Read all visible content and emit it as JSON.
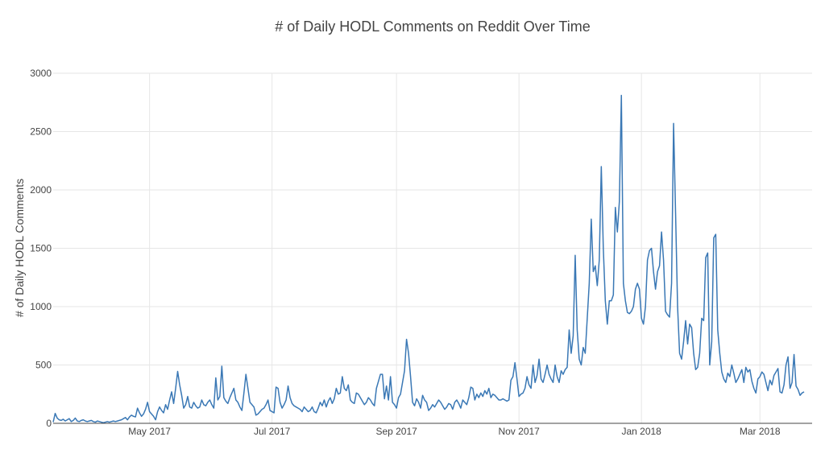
{
  "chart_data": {
    "type": "line",
    "title": "# of Daily HODL Comments on Reddit Over Time",
    "xlabel": "",
    "ylabel": "# of Daily HODL Comments",
    "x_start": "2017-03-14",
    "x_range": [
      "2017-03-14",
      "2018-03-27"
    ],
    "ylim": [
      0,
      3000
    ],
    "yticks": [
      0,
      500,
      1000,
      1500,
      2000,
      2500,
      3000
    ],
    "xticks": [
      {
        "date": "2017-05-01",
        "label": "May 2017"
      },
      {
        "date": "2017-07-01",
        "label": "Jul 2017"
      },
      {
        "date": "2017-09-01",
        "label": "Sep 2017"
      },
      {
        "date": "2017-11-01",
        "label": "Nov 2017"
      },
      {
        "date": "2018-01-01",
        "label": "Jan 2018"
      },
      {
        "date": "2018-03-01",
        "label": "Mar 2018"
      }
    ],
    "grid": true,
    "series_color": "#3a78b5",
    "series": [
      {
        "name": "",
        "values": [
          10,
          85,
          45,
          30,
          25,
          35,
          20,
          30,
          40,
          15,
          25,
          45,
          20,
          15,
          25,
          30,
          20,
          15,
          20,
          25,
          15,
          10,
          20,
          15,
          10,
          5,
          10,
          15,
          10,
          15,
          20,
          15,
          20,
          25,
          30,
          40,
          50,
          30,
          55,
          70,
          60,
          55,
          130,
          90,
          60,
          80,
          120,
          180,
          100,
          80,
          60,
          30,
          100,
          140,
          110,
          90,
          160,
          120,
          200,
          270,
          170,
          300,
          445,
          330,
          240,
          130,
          160,
          230,
          140,
          130,
          180,
          150,
          130,
          140,
          200,
          160,
          150,
          180,
          200,
          160,
          130,
          390,
          200,
          230,
          490,
          220,
          190,
          170,
          220,
          260,
          300,
          200,
          180,
          140,
          110,
          260,
          420,
          300,
          180,
          160,
          140,
          70,
          80,
          100,
          120,
          130,
          160,
          200,
          110,
          100,
          90,
          310,
          300,
          180,
          130,
          160,
          200,
          320,
          220,
          170,
          150,
          140,
          130,
          120,
          100,
          140,
          120,
          100,
          110,
          140,
          100,
          90,
          130,
          180,
          150,
          200,
          140,
          190,
          220,
          170,
          210,
          300,
          250,
          260,
          400,
          300,
          280,
          330,
          200,
          180,
          170,
          260,
          250,
          220,
          190,
          160,
          180,
          220,
          200,
          170,
          150,
          300,
          360,
          420,
          420,
          210,
          320,
          200,
          400,
          180,
          160,
          130,
          220,
          250,
          350,
          450,
          720,
          600,
          400,
          180,
          150,
          210,
          180,
          130,
          240,
          200,
          180,
          110,
          130,
          160,
          140,
          170,
          200,
          180,
          150,
          120,
          140,
          170,
          160,
          120,
          180,
          200,
          170,
          130,
          200,
          180,
          160,
          220,
          310,
          300,
          200,
          250,
          220,
          260,
          230,
          280,
          250,
          300,
          220,
          250,
          240,
          220,
          200,
          200,
          210,
          200,
          190,
          200,
          370,
          400,
          520,
          380,
          230,
          250,
          260,
          300,
          400,
          330,
          300,
          500,
          350,
          410,
          550,
          380,
          350,
          420,
          500,
          420,
          380,
          350,
          500,
          400,
          350,
          450,
          420,
          460,
          480,
          800,
          600,
          750,
          1440,
          800,
          550,
          500,
          650,
          600,
          900,
          1200,
          1750,
          1300,
          1350,
          1180,
          1400,
          2200,
          1500,
          1050,
          850,
          1050,
          1050,
          1100,
          1850,
          1640,
          1900,
          2810,
          1200,
          1050,
          950,
          940,
          960,
          1000,
          1150,
          1200,
          1150,
          900,
          850,
          1000,
          1400,
          1480,
          1500,
          1300,
          1150,
          1300,
          1350,
          1640,
          1400,
          960,
          930,
          910,
          1200,
          2570,
          1800,
          1000,
          600,
          550,
          700,
          880,
          680,
          850,
          820,
          600,
          460,
          480,
          600,
          900,
          880,
          1420,
          1460,
          500,
          700,
          1590,
          1620,
          800,
          600,
          440,
          380,
          350,
          430,
          400,
          500,
          430,
          350,
          380,
          420,
          460,
          350,
          480,
          440,
          460,
          360,
          300,
          260,
          380,
          400,
          440,
          420,
          350,
          280,
          370,
          330,
          410,
          440,
          470,
          270,
          260,
          330,
          500,
          570,
          300,
          350,
          590,
          320,
          290,
          240,
          260,
          270
        ]
      }
    ]
  }
}
